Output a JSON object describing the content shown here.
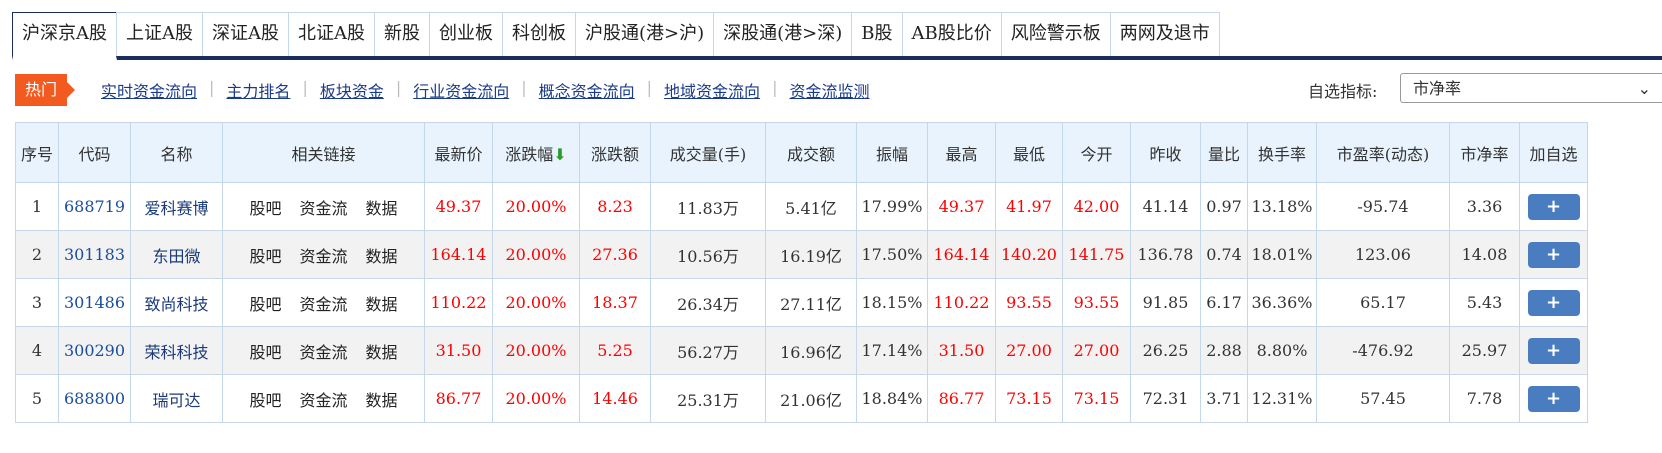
{
  "tabs": [
    "沪深京A股",
    "上证A股",
    "深证A股",
    "北证A股",
    "新股",
    "创业板",
    "科创板",
    "沪股通(港>沪)",
    "深股通(港>深)",
    "B股",
    "AB股比价",
    "风险警示板",
    "两网及退市"
  ],
  "hot_label": "热门",
  "sub_links": [
    "实时资金流向",
    "主力排名",
    "板块资金",
    "行业资金流向",
    "概念资金流向",
    "地域资金流向",
    "资金流监测"
  ],
  "selector": {
    "label": "自选指标:",
    "value": "市净率"
  },
  "columns": [
    "序号",
    "代码",
    "名称",
    "相关链接",
    "最新价",
    "涨跌幅",
    "涨跌额",
    "成交量(手)",
    "成交额",
    "振幅",
    "最高",
    "最低",
    "今开",
    "昨收",
    "量比",
    "换手率",
    "市盈率(动态)",
    "市净率",
    "加自选"
  ],
  "sort_indicator": "down-arrow-icon",
  "link_labels": [
    "股吧",
    "资金流",
    "数据"
  ],
  "add_label": "+",
  "rows": [
    [
      "1",
      "688719",
      "爱科赛博",
      "49.37",
      "20.00%",
      "8.23",
      "11.83万",
      "5.41亿",
      "17.99%",
      "49.37",
      "41.97",
      "42.00",
      "41.14",
      "0.97",
      "13.18%",
      "-95.74",
      "3.36"
    ],
    [
      "2",
      "301183",
      "东田微",
      "164.14",
      "20.00%",
      "27.36",
      "10.56万",
      "16.19亿",
      "17.50%",
      "164.14",
      "140.20",
      "141.75",
      "136.78",
      "0.74",
      "18.01%",
      "123.06",
      "14.08"
    ],
    [
      "3",
      "301486",
      "致尚科技",
      "110.22",
      "20.00%",
      "18.37",
      "26.34万",
      "27.11亿",
      "18.15%",
      "110.22",
      "93.55",
      "93.55",
      "91.85",
      "6.17",
      "36.36%",
      "65.17",
      "5.43"
    ],
    [
      "4",
      "300290",
      "荣科科技",
      "31.50",
      "20.00%",
      "5.25",
      "56.27万",
      "16.96亿",
      "17.14%",
      "31.50",
      "27.00",
      "27.00",
      "26.25",
      "2.88",
      "8.80%",
      "-476.92",
      "25.97"
    ],
    [
      "5",
      "688800",
      "瑞可达",
      "86.77",
      "20.00%",
      "14.46",
      "25.31万",
      "21.06亿",
      "18.84%",
      "86.77",
      "73.15",
      "73.15",
      "72.31",
      "3.71",
      "12.31%",
      "57.45",
      "7.78"
    ]
  ]
}
